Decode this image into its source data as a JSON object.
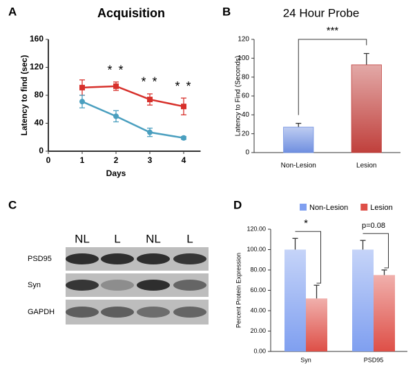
{
  "chart_data": [
    {
      "type": "line",
      "panel_label": "A",
      "title": "Acquisition",
      "x_label": "Days",
      "y_label": "Latency to find (sec)",
      "x": [
        1,
        2,
        3,
        4
      ],
      "xlim": [
        0,
        4.5
      ],
      "xticks": [
        0,
        1,
        2,
        3,
        4
      ],
      "ylim": [
        0,
        160
      ],
      "yticks": [
        0,
        40,
        80,
        120,
        160
      ],
      "series": [
        {
          "color": "#d7302b",
          "marker": "square",
          "values": [
            91,
            93,
            74,
            64
          ],
          "errors": [
            11,
            6,
            8,
            12
          ]
        },
        {
          "color": "#4a9fbf",
          "marker": "circle",
          "values": [
            71,
            50,
            27,
            19
          ],
          "errors": [
            9,
            8,
            6,
            2
          ]
        }
      ],
      "annotations": [
        {
          "text": "* *",
          "x": 2
        },
        {
          "text": "* *",
          "x": 3
        },
        {
          "text": "* *",
          "x": 4
        }
      ]
    },
    {
      "type": "bar",
      "panel_label": "B",
      "title": "24 Hour Probe",
      "y_label": "Latency to Find (Seconds)",
      "categories": [
        "Non-Lesion",
        "Lesion"
      ],
      "values": [
        27,
        93
      ],
      "errors": [
        4,
        12
      ],
      "colors": [
        "#6f8fe0",
        "#c0403c"
      ],
      "ylim": [
        0,
        120
      ],
      "yticks": [
        0,
        20,
        40,
        60,
        80,
        100,
        120
      ],
      "significance": "***"
    },
    {
      "type": "grouped_bar",
      "panel_label": "D",
      "y_label": "Percent Protein Expression",
      "legend": "top",
      "categories": [
        "Syn",
        "PSD95"
      ],
      "series": [
        {
          "name": "Non-Lesion",
          "color": "#7f9ff0",
          "values": [
            100,
            100
          ],
          "errors": [
            11,
            9
          ]
        },
        {
          "name": "Lesion",
          "color": "#de4f47",
          "values": [
            52,
            75
          ],
          "errors": [
            13,
            5
          ]
        }
      ],
      "ylim": [
        0,
        120
      ],
      "yticks": [
        {
          "value": 0,
          "label": "0.00"
        },
        {
          "value": 20,
          "label": "20.00"
        },
        {
          "value": 40,
          "label": "40.00"
        },
        {
          "value": 60,
          "label": "60.00"
        },
        {
          "value": 80,
          "label": "80.00"
        },
        {
          "value": 100,
          "label": "100.00"
        },
        {
          "value": 120,
          "label": "120.00"
        }
      ],
      "annotations": [
        {
          "text": "*",
          "category": 0
        },
        {
          "text": "p=0.08",
          "category": 1
        }
      ]
    }
  ],
  "blot": {
    "panel_label": "C",
    "lanes": [
      "NL",
      "L",
      "NL",
      "L"
    ],
    "rows": [
      "PSD95",
      "Syn",
      "GAPDH"
    ]
  }
}
